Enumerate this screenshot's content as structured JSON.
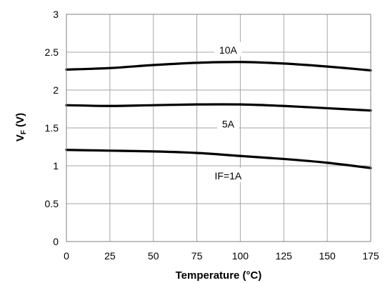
{
  "chart_data": {
    "type": "line",
    "xlabel": "Temperature (°C)",
    "ylabel_main": "V",
    "ylabel_sub": "F",
    "ylabel_unit": " (V)",
    "xlim": [
      0,
      175
    ],
    "ylim": [
      0,
      3
    ],
    "x_ticks": [
      "0",
      "25",
      "50",
      "75",
      "100",
      "125",
      "150",
      "175"
    ],
    "y_ticks": [
      "0",
      "0.5",
      "1",
      "1.5",
      "2",
      "2.5",
      "3"
    ],
    "grid": true,
    "x": [
      0,
      25,
      50,
      75,
      100,
      125,
      150,
      175
    ],
    "series": [
      {
        "name": "10A",
        "values": [
          2.27,
          2.29,
          2.33,
          2.36,
          2.37,
          2.35,
          2.31,
          2.26
        ]
      },
      {
        "name": "5A",
        "values": [
          1.8,
          1.79,
          1.8,
          1.81,
          1.81,
          1.79,
          1.76,
          1.73
        ]
      },
      {
        "name": "IF=1A",
        "values": [
          1.21,
          1.2,
          1.19,
          1.17,
          1.13,
          1.09,
          1.04,
          0.97
        ]
      }
    ]
  }
}
